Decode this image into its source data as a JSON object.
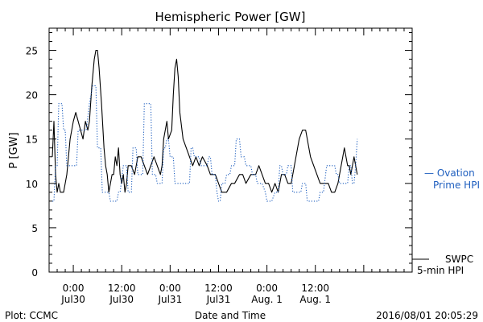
{
  "chart_data": {
    "type": "line",
    "title": "Hemispheric Power [GW]",
    "ylabel": "P [GW]",
    "xlabel": "Date and Time",
    "ylim": [
      0,
      27.5
    ],
    "xlim_hours": [
      -3,
      42
    ],
    "yticks": [
      0,
      5,
      10,
      15,
      20,
      25
    ],
    "xticks": [
      {
        "hour": 0,
        "time": "0:00",
        "date": "Jul30"
      },
      {
        "hour": 6,
        "time": "12:00",
        "date": "Jul30"
      },
      {
        "hour": 12,
        "time": "0:00",
        "date": "Jul31"
      },
      {
        "hour": 18,
        "time": "12:00",
        "date": "Jul31"
      },
      {
        "hour": 24,
        "time": "0:00",
        "date": "Aug. 1"
      },
      {
        "hour": 30,
        "time": "12:00",
        "date": "Aug. 1"
      }
    ],
    "series": [
      {
        "name": "SWPC 5-min HPI",
        "legend_lines": [
          "SWPC",
          "5-min HPI"
        ],
        "color": "#000000",
        "style": "solid",
        "points": [
          [
            -2.6,
            13
          ],
          [
            -2.4,
            17
          ],
          [
            -2.2,
            11
          ],
          [
            -2.0,
            9
          ],
          [
            -1.8,
            10
          ],
          [
            -1.6,
            9
          ],
          [
            -1.2,
            9
          ],
          [
            -0.8,
            11
          ],
          [
            -0.4,
            15
          ],
          [
            0.0,
            17
          ],
          [
            0.3,
            18
          ],
          [
            0.6,
            17
          ],
          [
            0.9,
            16
          ],
          [
            1.2,
            15
          ],
          [
            1.5,
            17
          ],
          [
            1.8,
            16
          ],
          [
            2.0,
            17
          ],
          [
            2.3,
            21
          ],
          [
            2.6,
            24
          ],
          [
            2.8,
            25
          ],
          [
            3.0,
            25
          ],
          [
            3.2,
            23
          ],
          [
            3.5,
            19
          ],
          [
            3.8,
            14
          ],
          [
            4.0,
            12
          ],
          [
            4.2,
            11
          ],
          [
            4.4,
            9
          ],
          [
            4.6,
            10
          ],
          [
            4.8,
            11
          ],
          [
            5.0,
            11
          ],
          [
            5.2,
            13
          ],
          [
            5.4,
            12
          ],
          [
            5.6,
            14
          ],
          [
            5.8,
            11
          ],
          [
            6.0,
            10
          ],
          [
            6.2,
            11
          ],
          [
            6.4,
            9
          ],
          [
            6.6,
            10
          ],
          [
            6.8,
            12
          ],
          [
            7.2,
            12
          ],
          [
            7.6,
            11
          ],
          [
            7.8,
            12
          ],
          [
            8.0,
            13
          ],
          [
            8.4,
            13
          ],
          [
            8.8,
            12
          ],
          [
            9.2,
            11
          ],
          [
            9.6,
            12
          ],
          [
            10.0,
            13
          ],
          [
            10.4,
            12
          ],
          [
            10.8,
            11
          ],
          [
            11.0,
            12
          ],
          [
            11.2,
            15
          ],
          [
            11.4,
            16
          ],
          [
            11.6,
            17
          ],
          [
            11.8,
            15
          ],
          [
            12.2,
            16
          ],
          [
            12.4,
            20
          ],
          [
            12.6,
            23
          ],
          [
            12.8,
            24
          ],
          [
            13.0,
            22
          ],
          [
            13.2,
            18
          ],
          [
            13.6,
            15
          ],
          [
            14.0,
            14
          ],
          [
            14.4,
            13
          ],
          [
            14.8,
            12
          ],
          [
            15.2,
            13
          ],
          [
            15.6,
            12
          ],
          [
            16.0,
            13
          ],
          [
            16.6,
            12
          ],
          [
            17.0,
            11
          ],
          [
            17.6,
            11
          ],
          [
            18.0,
            10
          ],
          [
            18.4,
            9
          ],
          [
            19.0,
            9
          ],
          [
            19.6,
            10
          ],
          [
            20.0,
            10
          ],
          [
            20.6,
            11
          ],
          [
            21.0,
            11
          ],
          [
            21.4,
            10
          ],
          [
            22.0,
            11
          ],
          [
            22.6,
            11
          ],
          [
            23.0,
            12
          ],
          [
            23.4,
            11
          ],
          [
            23.8,
            10
          ],
          [
            24.2,
            10
          ],
          [
            24.6,
            9
          ],
          [
            25.0,
            10
          ],
          [
            25.4,
            9
          ],
          [
            25.8,
            11
          ],
          [
            26.2,
            11
          ],
          [
            26.6,
            10
          ],
          [
            27.0,
            10
          ],
          [
            27.4,
            12
          ],
          [
            27.8,
            14
          ],
          [
            28.0,
            15
          ],
          [
            28.4,
            16
          ],
          [
            28.8,
            16
          ],
          [
            29.0,
            15
          ],
          [
            29.4,
            13
          ],
          [
            29.8,
            12
          ],
          [
            30.2,
            11
          ],
          [
            30.6,
            10
          ],
          [
            31.0,
            10
          ],
          [
            31.6,
            10
          ],
          [
            32.0,
            9
          ],
          [
            32.4,
            9
          ],
          [
            32.8,
            10
          ],
          [
            33.0,
            11
          ],
          [
            33.2,
            12
          ],
          [
            33.4,
            13
          ],
          [
            33.6,
            14
          ],
          [
            33.8,
            13
          ],
          [
            34.0,
            12
          ],
          [
            34.2,
            12
          ],
          [
            34.4,
            11
          ],
          [
            34.6,
            12
          ],
          [
            34.8,
            13
          ],
          [
            35.0,
            12
          ],
          [
            35.2,
            11
          ]
        ]
      },
      {
        "name": "Ovation Prime HPI",
        "legend_lines": [
          "— Ovation",
          "Prime HPI"
        ],
        "color": "#1f5fbf",
        "style": "dotted",
        "points": [
          [
            -2.6,
            8
          ],
          [
            -2.4,
            8
          ],
          [
            -2.2,
            12
          ],
          [
            -2.0,
            12
          ],
          [
            -1.8,
            19
          ],
          [
            -1.4,
            19
          ],
          [
            -1.2,
            16
          ],
          [
            -1.0,
            16
          ],
          [
            -0.8,
            12
          ],
          [
            0.4,
            12
          ],
          [
            0.6,
            16
          ],
          [
            1.6,
            16
          ],
          [
            2.0,
            19
          ],
          [
            2.4,
            21
          ],
          [
            2.8,
            21
          ],
          [
            3.0,
            14
          ],
          [
            3.4,
            14
          ],
          [
            3.6,
            9
          ],
          [
            4.4,
            9
          ],
          [
            4.6,
            8
          ],
          [
            5.4,
            8
          ],
          [
            5.6,
            9
          ],
          [
            5.8,
            9
          ],
          [
            6.2,
            12
          ],
          [
            6.6,
            12
          ],
          [
            6.8,
            9
          ],
          [
            7.2,
            9
          ],
          [
            7.4,
            14
          ],
          [
            7.8,
            14
          ],
          [
            8.0,
            11
          ],
          [
            8.6,
            11
          ],
          [
            8.8,
            19
          ],
          [
            9.6,
            19
          ],
          [
            9.8,
            11
          ],
          [
            10.2,
            11
          ],
          [
            10.4,
            10
          ],
          [
            11.0,
            10
          ],
          [
            11.2,
            14
          ],
          [
            11.4,
            14
          ],
          [
            11.6,
            15
          ],
          [
            11.8,
            15
          ],
          [
            12.0,
            13
          ],
          [
            12.4,
            13
          ],
          [
            12.6,
            10
          ],
          [
            14.4,
            10
          ],
          [
            14.6,
            14
          ],
          [
            14.8,
            14
          ],
          [
            15.0,
            13
          ],
          [
            15.6,
            13
          ],
          [
            15.8,
            12
          ],
          [
            16.6,
            12
          ],
          [
            16.8,
            13
          ],
          [
            17.0,
            13
          ],
          [
            17.2,
            11
          ],
          [
            17.6,
            11
          ],
          [
            17.8,
            9
          ],
          [
            18.0,
            8
          ],
          [
            18.2,
            8
          ],
          [
            18.4,
            10
          ],
          [
            18.8,
            10
          ],
          [
            19.0,
            11
          ],
          [
            19.4,
            11
          ],
          [
            19.6,
            12
          ],
          [
            20.0,
            12
          ],
          [
            20.2,
            15
          ],
          [
            20.6,
            15
          ],
          [
            20.8,
            13
          ],
          [
            21.2,
            13
          ],
          [
            21.4,
            12
          ],
          [
            22.0,
            12
          ],
          [
            22.2,
            11
          ],
          [
            22.6,
            11
          ],
          [
            22.8,
            10
          ],
          [
            23.4,
            10
          ],
          [
            23.8,
            9
          ],
          [
            24.0,
            8
          ],
          [
            24.6,
            8
          ],
          [
            25.0,
            9
          ],
          [
            25.4,
            9
          ],
          [
            25.6,
            12
          ],
          [
            25.8,
            12
          ],
          [
            26.0,
            11
          ],
          [
            26.4,
            11
          ],
          [
            26.6,
            12
          ],
          [
            27.0,
            12
          ],
          [
            27.2,
            9
          ],
          [
            27.6,
            9
          ],
          [
            28.2,
            9
          ],
          [
            28.4,
            10
          ],
          [
            28.8,
            10
          ],
          [
            29.0,
            8
          ],
          [
            29.6,
            8
          ],
          [
            30.0,
            8
          ],
          [
            30.4,
            8
          ],
          [
            30.6,
            9
          ],
          [
            31.0,
            9
          ],
          [
            31.4,
            12
          ],
          [
            31.8,
            12
          ],
          [
            32.0,
            12
          ],
          [
            32.4,
            12
          ],
          [
            32.6,
            11
          ],
          [
            32.8,
            11
          ],
          [
            33.0,
            10
          ],
          [
            34.0,
            10
          ],
          [
            34.2,
            12
          ],
          [
            34.4,
            12
          ],
          [
            34.6,
            10
          ],
          [
            34.8,
            10
          ],
          [
            35.0,
            12
          ],
          [
            35.2,
            15
          ]
        ]
      }
    ]
  },
  "footer": {
    "left": "Plot: CCMC",
    "center": "Date and Time",
    "right": "2016/08/01 20:05:29"
  },
  "colors": {
    "swpc": "#000000",
    "ovation": "#1f5fbf",
    "axes": "#000000"
  }
}
